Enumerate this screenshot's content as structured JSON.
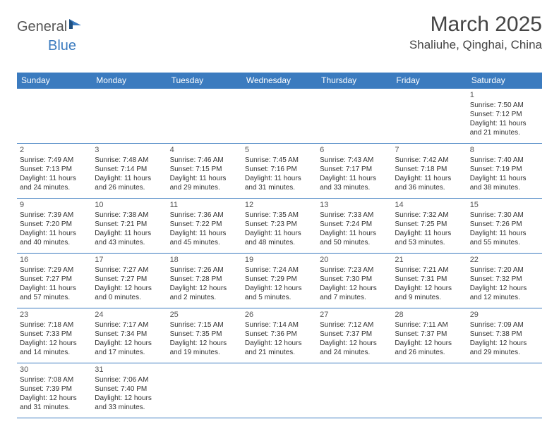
{
  "logo": {
    "text1": "General",
    "text2": "Blue"
  },
  "title": "March 2025",
  "location": "Shaliuhe, Qinghai, China",
  "colors": {
    "header_bg": "#3b7bbf",
    "header_fg": "#ffffff",
    "border": "#3b7bbf",
    "text": "#333333"
  },
  "weekdays": [
    "Sunday",
    "Monday",
    "Tuesday",
    "Wednesday",
    "Thursday",
    "Friday",
    "Saturday"
  ],
  "weeks": [
    [
      null,
      null,
      null,
      null,
      null,
      null,
      {
        "n": "1",
        "sr": "7:50 AM",
        "ss": "7:12 PM",
        "dl": "11 hours and 21 minutes."
      }
    ],
    [
      {
        "n": "2",
        "sr": "7:49 AM",
        "ss": "7:13 PM",
        "dl": "11 hours and 24 minutes."
      },
      {
        "n": "3",
        "sr": "7:48 AM",
        "ss": "7:14 PM",
        "dl": "11 hours and 26 minutes."
      },
      {
        "n": "4",
        "sr": "7:46 AM",
        "ss": "7:15 PM",
        "dl": "11 hours and 29 minutes."
      },
      {
        "n": "5",
        "sr": "7:45 AM",
        "ss": "7:16 PM",
        "dl": "11 hours and 31 minutes."
      },
      {
        "n": "6",
        "sr": "7:43 AM",
        "ss": "7:17 PM",
        "dl": "11 hours and 33 minutes."
      },
      {
        "n": "7",
        "sr": "7:42 AM",
        "ss": "7:18 PM",
        "dl": "11 hours and 36 minutes."
      },
      {
        "n": "8",
        "sr": "7:40 AM",
        "ss": "7:19 PM",
        "dl": "11 hours and 38 minutes."
      }
    ],
    [
      {
        "n": "9",
        "sr": "7:39 AM",
        "ss": "7:20 PM",
        "dl": "11 hours and 40 minutes."
      },
      {
        "n": "10",
        "sr": "7:38 AM",
        "ss": "7:21 PM",
        "dl": "11 hours and 43 minutes."
      },
      {
        "n": "11",
        "sr": "7:36 AM",
        "ss": "7:22 PM",
        "dl": "11 hours and 45 minutes."
      },
      {
        "n": "12",
        "sr": "7:35 AM",
        "ss": "7:23 PM",
        "dl": "11 hours and 48 minutes."
      },
      {
        "n": "13",
        "sr": "7:33 AM",
        "ss": "7:24 PM",
        "dl": "11 hours and 50 minutes."
      },
      {
        "n": "14",
        "sr": "7:32 AM",
        "ss": "7:25 PM",
        "dl": "11 hours and 53 minutes."
      },
      {
        "n": "15",
        "sr": "7:30 AM",
        "ss": "7:26 PM",
        "dl": "11 hours and 55 minutes."
      }
    ],
    [
      {
        "n": "16",
        "sr": "7:29 AM",
        "ss": "7:27 PM",
        "dl": "11 hours and 57 minutes."
      },
      {
        "n": "17",
        "sr": "7:27 AM",
        "ss": "7:27 PM",
        "dl": "12 hours and 0 minutes."
      },
      {
        "n": "18",
        "sr": "7:26 AM",
        "ss": "7:28 PM",
        "dl": "12 hours and 2 minutes."
      },
      {
        "n": "19",
        "sr": "7:24 AM",
        "ss": "7:29 PM",
        "dl": "12 hours and 5 minutes."
      },
      {
        "n": "20",
        "sr": "7:23 AM",
        "ss": "7:30 PM",
        "dl": "12 hours and 7 minutes."
      },
      {
        "n": "21",
        "sr": "7:21 AM",
        "ss": "7:31 PM",
        "dl": "12 hours and 9 minutes."
      },
      {
        "n": "22",
        "sr": "7:20 AM",
        "ss": "7:32 PM",
        "dl": "12 hours and 12 minutes."
      }
    ],
    [
      {
        "n": "23",
        "sr": "7:18 AM",
        "ss": "7:33 PM",
        "dl": "12 hours and 14 minutes."
      },
      {
        "n": "24",
        "sr": "7:17 AM",
        "ss": "7:34 PM",
        "dl": "12 hours and 17 minutes."
      },
      {
        "n": "25",
        "sr": "7:15 AM",
        "ss": "7:35 PM",
        "dl": "12 hours and 19 minutes."
      },
      {
        "n": "26",
        "sr": "7:14 AM",
        "ss": "7:36 PM",
        "dl": "12 hours and 21 minutes."
      },
      {
        "n": "27",
        "sr": "7:12 AM",
        "ss": "7:37 PM",
        "dl": "12 hours and 24 minutes."
      },
      {
        "n": "28",
        "sr": "7:11 AM",
        "ss": "7:37 PM",
        "dl": "12 hours and 26 minutes."
      },
      {
        "n": "29",
        "sr": "7:09 AM",
        "ss": "7:38 PM",
        "dl": "12 hours and 29 minutes."
      }
    ],
    [
      {
        "n": "30",
        "sr": "7:08 AM",
        "ss": "7:39 PM",
        "dl": "12 hours and 31 minutes."
      },
      {
        "n": "31",
        "sr": "7:06 AM",
        "ss": "7:40 PM",
        "dl": "12 hours and 33 minutes."
      },
      null,
      null,
      null,
      null,
      null
    ]
  ],
  "labels": {
    "sunrise": "Sunrise: ",
    "sunset": "Sunset: ",
    "daylight": "Daylight: "
  }
}
